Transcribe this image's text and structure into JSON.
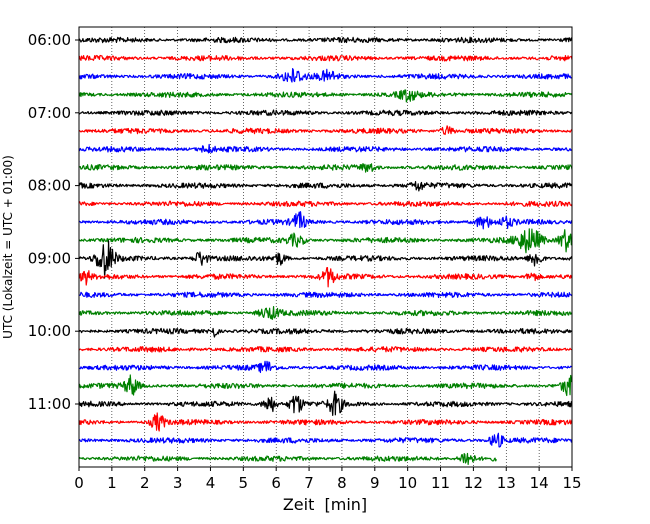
{
  "chart_data": {
    "type": "line",
    "subtype": "helicorder",
    "xlabel": "Zeit  [min]",
    "ylabel": "UTC (Lokalzeit = UTC + 01:00)",
    "xlim": [
      0,
      15
    ],
    "x_ticks": [
      "0",
      "1",
      "2",
      "3",
      "4",
      "5",
      "6",
      "7",
      "8",
      "9",
      "10",
      "11",
      "12",
      "13",
      "14",
      "15"
    ],
    "y_tick_labels": [
      "06:00",
      "07:00",
      "08:00",
      "09:00",
      "10:00",
      "11:00"
    ],
    "grid": "vertical dotted at each minute",
    "colors_cycle": [
      "#000000",
      "#ff0000",
      "#0000ff",
      "#008000"
    ],
    "trace_start_times": [
      "06:00",
      "06:15",
      "06:30",
      "06:45",
      "07:00",
      "07:15",
      "07:30",
      "07:45",
      "08:00",
      "08:15",
      "08:30",
      "08:45",
      "09:00",
      "09:15",
      "09:30",
      "09:45",
      "10:00",
      "10:15",
      "10:30",
      "10:45",
      "11:00",
      "11:15",
      "11:30",
      "11:45"
    ],
    "last_trace_end_min": 12.7,
    "events": [
      {
        "trace": "06:30",
        "minute": 6.5,
        "amplitude": 0.45,
        "width_min": 0.5
      },
      {
        "trace": "06:30",
        "minute": 7.6,
        "amplitude": 0.35,
        "width_min": 0.4
      },
      {
        "trace": "06:45",
        "minute": 10.0,
        "amplitude": 0.35,
        "width_min": 0.4
      },
      {
        "trace": "07:15",
        "minute": 11.2,
        "amplitude": 0.3,
        "width_min": 0.3
      },
      {
        "trace": "07:30",
        "minute": 3.9,
        "amplitude": 0.25,
        "width_min": 0.3
      },
      {
        "trace": "07:45",
        "minute": 8.8,
        "amplitude": 0.3,
        "width_min": 0.3
      },
      {
        "trace": "08:00",
        "minute": 10.3,
        "amplitude": 0.3,
        "width_min": 0.3
      },
      {
        "trace": "08:30",
        "minute": 6.7,
        "amplitude": 0.6,
        "width_min": 0.3
      },
      {
        "trace": "08:30",
        "minute": 12.3,
        "amplitude": 0.4,
        "width_min": 0.4
      },
      {
        "trace": "08:30",
        "minute": 13.0,
        "amplitude": 0.3,
        "width_min": 0.3
      },
      {
        "trace": "08:45",
        "minute": 6.6,
        "amplitude": 0.4,
        "width_min": 0.4
      },
      {
        "trace": "08:45",
        "minute": 13.7,
        "amplitude": 0.8,
        "width_min": 0.6
      },
      {
        "trace": "08:45",
        "minute": 14.8,
        "amplitude": 0.8,
        "width_min": 0.3
      },
      {
        "trace": "09:00",
        "minute": 0.8,
        "amplitude": 1.3,
        "width_min": 0.4
      },
      {
        "trace": "09:00",
        "minute": 3.7,
        "amplitude": 0.5,
        "width_min": 0.3
      },
      {
        "trace": "09:00",
        "minute": 6.1,
        "amplitude": 0.4,
        "width_min": 0.3
      },
      {
        "trace": "09:00",
        "minute": 13.9,
        "amplitude": 0.6,
        "width_min": 0.3
      },
      {
        "trace": "09:15",
        "minute": 0.2,
        "amplitude": 0.5,
        "width_min": 0.2
      },
      {
        "trace": "09:15",
        "minute": 7.6,
        "amplitude": 0.6,
        "width_min": 0.3
      },
      {
        "trace": "09:15",
        "minute": 13.8,
        "amplitude": 0.3,
        "width_min": 0.3
      },
      {
        "trace": "09:45",
        "minute": 5.8,
        "amplitude": 0.4,
        "width_min": 0.5
      },
      {
        "trace": "10:00",
        "minute": 4.1,
        "amplitude": 0.4,
        "width_min": 0.2
      },
      {
        "trace": "10:30",
        "minute": 5.7,
        "amplitude": 0.4,
        "width_min": 0.3
      },
      {
        "trace": "10:45",
        "minute": 1.6,
        "amplitude": 0.7,
        "width_min": 0.3
      },
      {
        "trace": "10:45",
        "minute": 14.9,
        "amplitude": 0.7,
        "width_min": 0.3
      },
      {
        "trace": "11:00",
        "minute": 5.8,
        "amplitude": 0.6,
        "width_min": 0.3
      },
      {
        "trace": "11:00",
        "minute": 6.6,
        "amplitude": 0.7,
        "width_min": 0.3
      },
      {
        "trace": "11:00",
        "minute": 7.8,
        "amplitude": 0.8,
        "width_min": 0.3
      },
      {
        "trace": "11:15",
        "minute": 2.4,
        "amplitude": 0.6,
        "width_min": 0.3
      },
      {
        "trace": "11:30",
        "minute": 12.7,
        "amplitude": 0.5,
        "width_min": 0.3
      },
      {
        "trace": "11:45",
        "minute": 11.8,
        "amplitude": 0.6,
        "width_min": 0.3
      }
    ]
  }
}
